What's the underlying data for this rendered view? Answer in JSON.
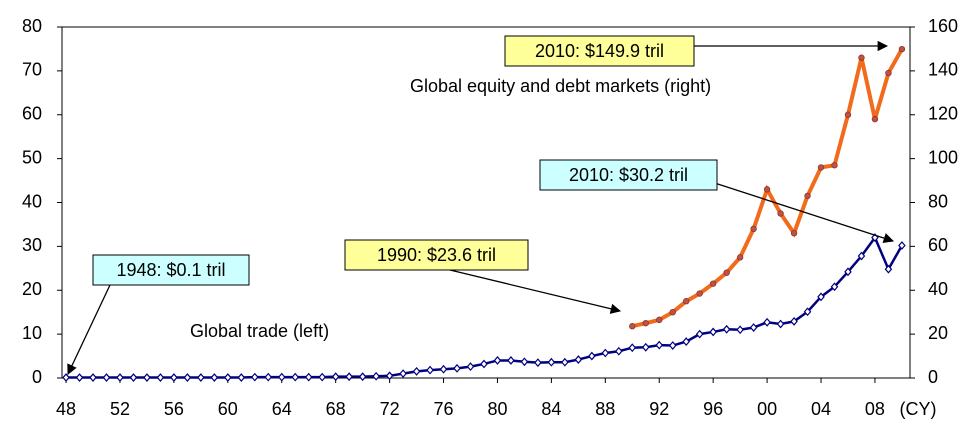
{
  "chart_data": {
    "type": "line",
    "x_axis_label": "(CY)",
    "xlim": [
      1947.7,
      2010.6
    ],
    "xticks": [
      {
        "value": 1948,
        "label": "48"
      },
      {
        "value": 1952,
        "label": "52"
      },
      {
        "value": 1956,
        "label": "56"
      },
      {
        "value": 1960,
        "label": "60"
      },
      {
        "value": 1964,
        "label": "64"
      },
      {
        "value": 1968,
        "label": "68"
      },
      {
        "value": 1972,
        "label": "72"
      },
      {
        "value": 1976,
        "label": "76"
      },
      {
        "value": 1980,
        "label": "80"
      },
      {
        "value": 1984,
        "label": "84"
      },
      {
        "value": 1988,
        "label": "88"
      },
      {
        "value": 1992,
        "label": "92"
      },
      {
        "value": 1996,
        "label": "96"
      },
      {
        "value": 2000,
        "label": "00"
      },
      {
        "value": 2004,
        "label": "04"
      },
      {
        "value": 2008,
        "label": "08"
      }
    ],
    "ylim": [
      0,
      80
    ],
    "yticks": [
      0,
      10,
      20,
      30,
      40,
      50,
      60,
      70,
      80
    ],
    "y2lim": [
      0,
      160
    ],
    "y2ticks": [
      0,
      20,
      40,
      60,
      80,
      100,
      120,
      140,
      160
    ],
    "series": [
      {
        "name": "Global trade (left)",
        "color": "#000080",
        "axis": "y",
        "x": [
          1948,
          1949,
          1950,
          1951,
          1952,
          1953,
          1954,
          1955,
          1956,
          1957,
          1958,
          1959,
          1960,
          1961,
          1962,
          1963,
          1964,
          1965,
          1966,
          1967,
          1968,
          1969,
          1970,
          1971,
          1972,
          1973,
          1974,
          1975,
          1976,
          1977,
          1978,
          1979,
          1980,
          1981,
          1982,
          1983,
          1984,
          1985,
          1986,
          1987,
          1988,
          1989,
          1990,
          1991,
          1992,
          1993,
          1994,
          1995,
          1996,
          1997,
          1998,
          1999,
          2000,
          2001,
          2002,
          2003,
          2004,
          2005,
          2006,
          2007,
          2008,
          2009,
          2010
        ],
        "values": [
          0.1,
          0.1,
          0.1,
          0.1,
          0.1,
          0.1,
          0.1,
          0.1,
          0.1,
          0.1,
          0.1,
          0.1,
          0.1,
          0.1,
          0.2,
          0.2,
          0.2,
          0.2,
          0.2,
          0.2,
          0.3,
          0.3,
          0.3,
          0.4,
          0.5,
          1.0,
          1.5,
          1.8,
          2.0,
          2.2,
          2.6,
          3.2,
          4.0,
          4.0,
          3.7,
          3.5,
          3.6,
          3.6,
          4.2,
          5.0,
          5.7,
          6.1,
          6.9,
          7.0,
          7.5,
          7.4,
          8.3,
          10.0,
          10.5,
          11.1,
          11.0,
          11.5,
          12.7,
          12.3,
          12.9,
          15.1,
          18.5,
          20.8,
          24.2,
          27.8,
          32.0,
          24.8,
          30.2
        ]
      },
      {
        "name": "Global equity and debt markets (right)",
        "color": "#f26b1d",
        "axis": "y2",
        "x": [
          1990,
          1991,
          1992,
          1993,
          1994,
          1995,
          1996,
          1997,
          1998,
          1999,
          2000,
          2001,
          2002,
          2003,
          2004,
          2005,
          2006,
          2007,
          2008,
          2009,
          2010
        ],
        "values": [
          23.6,
          25,
          26.5,
          30,
          35,
          38.5,
          43,
          48,
          55,
          68,
          86,
          75,
          66,
          83,
          96,
          97,
          120,
          146,
          118,
          139,
          149.9
        ]
      }
    ],
    "annotations": [
      {
        "text": "1948: $0.1 tril",
        "color": "#ccffff"
      },
      {
        "text": "1990: $23.6 tril",
        "color": "#ffff99"
      },
      {
        "text": "2010: $30.2 tril",
        "color": "#ccffff"
      },
      {
        "text": "2010: $149.9 tril",
        "color": "#ffff99"
      }
    ]
  }
}
